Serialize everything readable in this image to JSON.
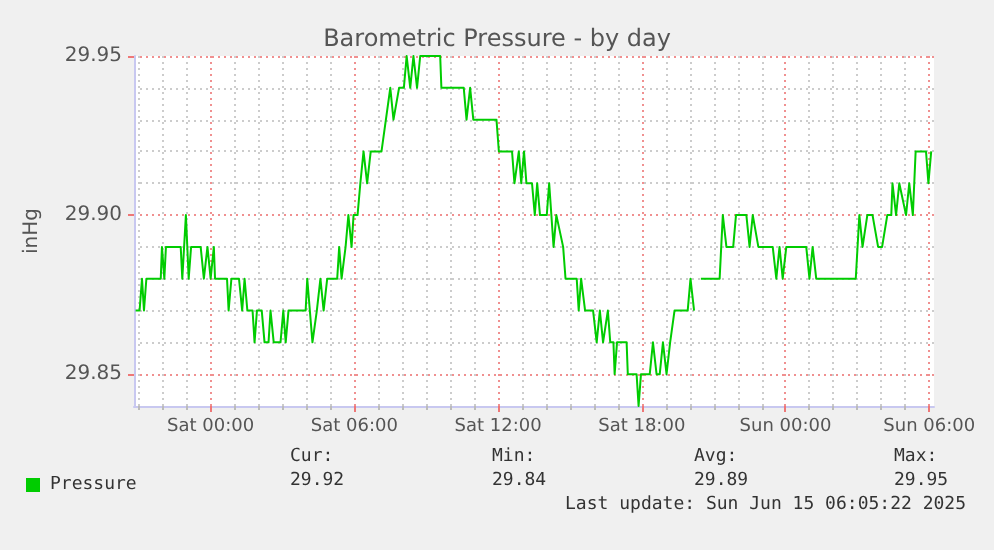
{
  "chart_data": {
    "type": "line",
    "title": "Barometric Pressure - by day",
    "ylabel": "inHg",
    "xlim": [
      "2025-06-13T20:48",
      "2025-06-15T06:12"
    ],
    "xticks": [
      {
        "value": "2025-06-14T00:00",
        "label": "Sat 00:00"
      },
      {
        "value": "2025-06-14T06:00",
        "label": "Sat 06:00"
      },
      {
        "value": "2025-06-14T12:00",
        "label": "Sat 12:00"
      },
      {
        "value": "2025-06-14T18:00",
        "label": "Sat 18:00"
      },
      {
        "value": "2025-06-15T00:00",
        "label": "Sun 00:00"
      },
      {
        "value": "2025-06-15T06:00",
        "label": "Sun 06:00"
      }
    ],
    "ylim": [
      29.84,
      29.95
    ],
    "yticks": [
      {
        "value": 29.85,
        "label": "29.85"
      },
      {
        "value": 29.9,
        "label": "29.90"
      },
      {
        "value": 29.95,
        "label": "29.95"
      }
    ],
    "grid": true,
    "legend": "bottom left",
    "marker": "none",
    "line_style": "solid",
    "annotations": [
      "Cur:",
      "29.92",
      "Min:",
      "29.84",
      "Avg:",
      "29.89",
      "Max:",
      "29.95",
      "Last update: Sun Jun 15 06:05:22 2025"
    ],
    "x": [
      "2025-06-13T20:52",
      "2025-06-13T21:02",
      "2025-06-13T21:08",
      "2025-06-13T21:13",
      "2025-06-13T21:19",
      "2025-06-13T21:55",
      "2025-06-13T21:58",
      "2025-06-13T22:04",
      "2025-06-13T22:08",
      "2025-06-13T22:45",
      "2025-06-13T22:49",
      "2025-06-13T22:58",
      "2025-06-13T23:05",
      "2025-06-13T23:11",
      "2025-06-13T23:35",
      "2025-06-13T23:43",
      "2025-06-13T23:52",
      "2025-06-14T00:00",
      "2025-06-14T00:08",
      "2025-06-14T00:11",
      "2025-06-14T00:41",
      "2025-06-14T00:45",
      "2025-06-14T00:52",
      "2025-06-14T01:11",
      "2025-06-14T01:19",
      "2025-06-14T01:25",
      "2025-06-14T01:32",
      "2025-06-14T01:45",
      "2025-06-14T01:50",
      "2025-06-14T01:56",
      "2025-06-14T02:08",
      "2025-06-14T02:15",
      "2025-06-14T02:25",
      "2025-06-14T02:30",
      "2025-06-14T02:38",
      "2025-06-14T02:55",
      "2025-06-14T03:02",
      "2025-06-14T03:08",
      "2025-06-14T03:15",
      "2025-06-14T03:58",
      "2025-06-14T04:02",
      "2025-06-14T04:15",
      "2025-06-14T04:26",
      "2025-06-14T04:35",
      "2025-06-14T04:43",
      "2025-06-14T04:52",
      "2025-06-14T05:17",
      "2025-06-14T05:22",
      "2025-06-14T05:28",
      "2025-06-14T05:38",
      "2025-06-14T05:45",
      "2025-06-14T05:53",
      "2025-06-14T05:58",
      "2025-06-14T06:08",
      "2025-06-14T06:15",
      "2025-06-14T06:23",
      "2025-06-14T06:32",
      "2025-06-14T06:41",
      "2025-06-14T07:08",
      "2025-06-14T07:19",
      "2025-06-14T07:30",
      "2025-06-14T07:38",
      "2025-06-14T07:52",
      "2025-06-14T08:04",
      "2025-06-14T08:11",
      "2025-06-14T08:20",
      "2025-06-14T08:28",
      "2025-06-14T08:37",
      "2025-06-14T08:45",
      "2025-06-14T09:35",
      "2025-06-14T09:38",
      "2025-06-14T10:34",
      "2025-06-14T10:41",
      "2025-06-14T10:50",
      "2025-06-14T10:58",
      "2025-06-14T11:56",
      "2025-06-14T12:02",
      "2025-06-14T12:35",
      "2025-06-14T12:41",
      "2025-06-14T12:52",
      "2025-06-14T12:58",
      "2025-06-14T13:05",
      "2025-06-14T13:11",
      "2025-06-14T13:25",
      "2025-06-14T13:32",
      "2025-06-14T13:38",
      "2025-06-14T13:45",
      "2025-06-14T14:02",
      "2025-06-14T14:08",
      "2025-06-14T14:19",
      "2025-06-14T14:26",
      "2025-06-14T14:43",
      "2025-06-14T14:49",
      "2025-06-14T15:17",
      "2025-06-14T15:22",
      "2025-06-14T15:28",
      "2025-06-14T15:38",
      "2025-06-14T15:58",
      "2025-06-14T16:07",
      "2025-06-14T16:15",
      "2025-06-14T16:23",
      "2025-06-14T16:35",
      "2025-06-14T16:41",
      "2025-06-14T16:49",
      "2025-06-14T16:52",
      "2025-06-14T16:58",
      "2025-06-14T17:22",
      "2025-06-14T17:25",
      "2025-06-14T17:47",
      "2025-06-14T17:52",
      "2025-06-14T17:58",
      "2025-06-14T18:20",
      "2025-06-14T18:28",
      "2025-06-14T18:37",
      "2025-06-14T18:45",
      "2025-06-14T18:53",
      "2025-06-14T19:02",
      "2025-06-14T19:11",
      "2025-06-14T19:22",
      "2025-06-14T19:55",
      "2025-06-14T20:02",
      "2025-06-14T20:11",
      "2025-06-14T20:18",
      "2025-06-14T20:28",
      "2025-06-14T21:15",
      "2025-06-14T21:23",
      "2025-06-14T21:32",
      "2025-06-14T21:49",
      "2025-06-14T21:56",
      "2025-06-14T22:22",
      "2025-06-14T22:30",
      "2025-06-14T22:38",
      "2025-06-14T22:52",
      "2025-06-14T23:28",
      "2025-06-14T23:37",
      "2025-06-14T23:45",
      "2025-06-14T23:53",
      "2025-06-15T00:02",
      "2025-06-15T00:52",
      "2025-06-15T01:00",
      "2025-06-15T01:08",
      "2025-06-15T01:17",
      "2025-06-15T02:56",
      "2025-06-15T03:05",
      "2025-06-15T03:13",
      "2025-06-15T03:25",
      "2025-06-15T03:38",
      "2025-06-15T03:52",
      "2025-06-15T04:02",
      "2025-06-15T04:15",
      "2025-06-15T04:25",
      "2025-06-15T04:28",
      "2025-06-15T04:37",
      "2025-06-15T04:45",
      "2025-06-15T05:02",
      "2025-06-15T05:10",
      "2025-06-15T05:19",
      "2025-06-15T05:26",
      "2025-06-15T05:52",
      "2025-06-15T05:58",
      "2025-06-15T06:05"
    ],
    "series": [
      {
        "name": "Pressure",
        "color": "#00cc00",
        "values": [
          29.87,
          29.87,
          29.88,
          29.87,
          29.88,
          29.88,
          29.89,
          29.88,
          29.89,
          29.89,
          29.88,
          29.9,
          29.88,
          29.89,
          29.89,
          29.88,
          29.89,
          29.88,
          29.89,
          29.88,
          29.88,
          29.87,
          29.88,
          29.88,
          29.87,
          29.88,
          29.87,
          29.87,
          29.86,
          29.87,
          29.87,
          29.86,
          29.86,
          29.87,
          29.86,
          29.86,
          29.87,
          29.86,
          29.87,
          29.87,
          29.88,
          29.86,
          29.87,
          29.88,
          29.87,
          29.88,
          29.88,
          29.89,
          29.88,
          29.89,
          29.9,
          29.89,
          29.9,
          29.9,
          29.91,
          29.92,
          29.91,
          29.92,
          29.92,
          29.93,
          29.94,
          29.93,
          29.94,
          29.94,
          29.95,
          29.94,
          29.95,
          29.94,
          29.95,
          29.95,
          29.94,
          29.94,
          29.93,
          29.94,
          29.93,
          29.93,
          29.92,
          29.92,
          29.91,
          29.92,
          29.91,
          29.92,
          29.91,
          29.91,
          29.9,
          29.91,
          29.9,
          29.9,
          29.91,
          29.89,
          29.9,
          29.89,
          29.88,
          29.88,
          29.87,
          29.88,
          29.87,
          29.87,
          29.86,
          29.87,
          29.86,
          29.87,
          29.86,
          29.86,
          29.85,
          29.86,
          29.86,
          29.85,
          29.85,
          29.84,
          29.85,
          29.85,
          29.86,
          29.85,
          29.85,
          29.86,
          29.85,
          29.86,
          29.87,
          29.87,
          29.88,
          29.87,
          null,
          29.88,
          29.88,
          29.9,
          29.89,
          29.89,
          29.9,
          29.9,
          29.89,
          29.9,
          29.89,
          29.89,
          29.88,
          29.89,
          29.88,
          29.89,
          29.89,
          29.88,
          29.89,
          29.88,
          29.88,
          29.9,
          29.89,
          29.9,
          29.9,
          29.89,
          29.89,
          29.9,
          29.9,
          29.91,
          29.9,
          29.91,
          29.9,
          29.91,
          29.9,
          29.92,
          29.92,
          29.91,
          29.92
        ]
      }
    ]
  }
}
